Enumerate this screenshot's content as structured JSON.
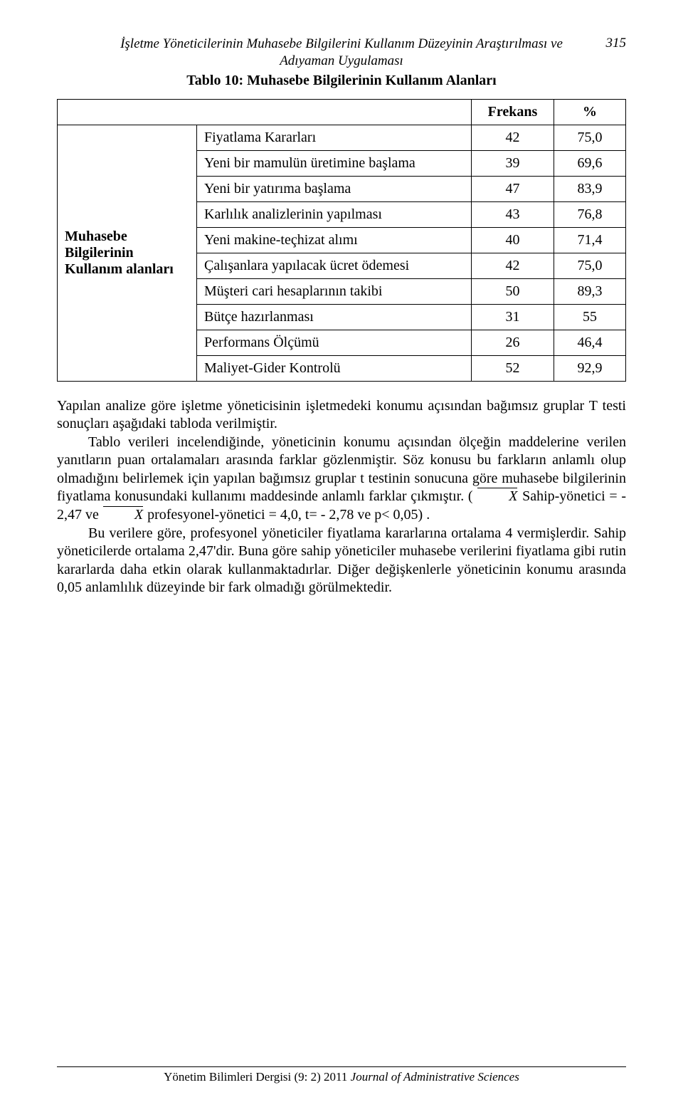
{
  "page_number": "315",
  "header": {
    "line1": "İşletme Yöneticilerinin Muhasebe Bilgilerini Kullanım Düzeyinin Araştırılması ve",
    "line2": "Adıyaman Uygulaması"
  },
  "table": {
    "caption": "Tablo 10: Muhasebe Bilgilerinin Kullanım Alanları",
    "header_frekans": "Frekans",
    "header_pct": "%",
    "row_group_label": "Muhasebe Bilgilerinin Kullanım alanları",
    "rows": [
      {
        "label": "Fiyatlama Kararları",
        "freq": "42",
        "pct": "75,0"
      },
      {
        "label": "Yeni bir mamulün üretimine başlama",
        "freq": "39",
        "pct": "69,6"
      },
      {
        "label": "Yeni bir yatırıma başlama",
        "freq": "47",
        "pct": "83,9"
      },
      {
        "label": "Karlılık analizlerinin yapılması",
        "freq": "43",
        "pct": "76,8"
      },
      {
        "label": "Yeni makine-teçhizat alımı",
        "freq": "40",
        "pct": "71,4"
      },
      {
        "label": "Çalışanlara yapılacak ücret ödemesi",
        "freq": "42",
        "pct": "75,0"
      },
      {
        "label": "Müşteri cari hesaplarının takibi",
        "freq": "50",
        "pct": "89,3"
      },
      {
        "label": "Bütçe hazırlanması",
        "freq": "31",
        "pct": "55"
      },
      {
        "label": "Performans Ölçümü",
        "freq": "26",
        "pct": "46,4"
      },
      {
        "label": "Maliyet-Gider Kontrolü",
        "freq": "52",
        "pct": "92,9"
      }
    ]
  },
  "body": {
    "p1": "Yapılan analize göre işletme yöneticisinin işletmedeki konumu açısından bağımsız gruplar T testi sonuçları aşağıdaki tabloda verilmiştir.",
    "p2a": "Tablo verileri incelendiğinde, yöneticinin konumu açısından ölçeğin maddelerine verilen yanıtların puan ortalamaları arasında farklar gözlenmiştir. Söz konusu bu farkların anlamlı olup olmadığını belirlemek için yapılan bağımsız gruplar t testinin sonucuna göre muhasebe bilgilerinin fiyatlama konusundaki kullanımı maddesinde anlamlı farklar çıkmıştır. ( ",
    "p2b": " Sahip-yönetici  = - 2,47 ve ",
    "p2c": " profesyonel-yönetici = 4,0, t= - 2,78 ve p< 0,05) .",
    "p3": "Bu verilere göre, profesyonel yöneticiler fiyatlama kararlarına ortalama 4 vermişlerdir. Sahip yöneticilerde ortalama 2,47'dir. Buna göre sahip yöneticiler muhasebe verilerini fiyatlama gibi rutin kararlarda daha etkin olarak kullanmaktadırlar. Diğer değişkenlerle yöneticinin konumu arasında 0,05 anlamlılık düzeyinde bir fark olmadığı görülmektedir.",
    "xbar": "X"
  },
  "footer": {
    "text_plain": "Yönetim Bilimleri Dergisi (9: 2) 2011 ",
    "text_italic": "Journal of Administrative Sciences"
  }
}
